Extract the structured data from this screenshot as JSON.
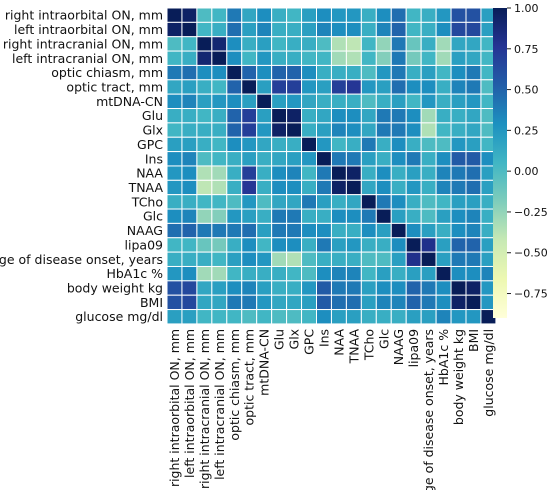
{
  "chart_data": {
    "type": "heatmap",
    "title": "",
    "xlabel": "",
    "ylabel": "",
    "labels": [
      "right intraorbital ON, mm",
      "left intraorbital ON, mm",
      "right intracranial ON, mm",
      "left intracranial ON, mm",
      "optic chiasm, mm",
      "optic tract, mm",
      "mtDNA-CN",
      "Glu",
      "Glx",
      "GPC",
      "Ins",
      "NAA",
      "TNAA",
      "TCho",
      "Glc",
      "NAAG",
      "lipa09",
      "Age of disease onset, years",
      "HbA1c %",
      "body weight kg",
      "BMI",
      "glucose mg/dl"
    ],
    "matrix": [
      [
        1.0,
        0.95,
        0.0,
        0.05,
        0.4,
        0.15,
        0.3,
        0.1,
        0.05,
        0.2,
        0.3,
        0.25,
        0.25,
        0.1,
        0.3,
        0.45,
        0.05,
        0.1,
        0.25,
        0.6,
        0.6,
        0.2
      ],
      [
        0.95,
        1.0,
        0.05,
        0.1,
        0.45,
        0.2,
        0.35,
        0.1,
        0.1,
        0.2,
        0.35,
        0.3,
        0.3,
        0.1,
        0.35,
        0.5,
        0.05,
        0.1,
        0.3,
        0.65,
        0.65,
        0.2
      ],
      [
        0.0,
        0.05,
        1.0,
        0.9,
        0.3,
        0.1,
        0.2,
        0.05,
        0.1,
        0.1,
        0.0,
        -0.35,
        -0.4,
        0.05,
        -0.25,
        0.4,
        -0.1,
        0.1,
        -0.3,
        0.15,
        0.15,
        0.05
      ],
      [
        0.05,
        0.1,
        0.9,
        1.0,
        0.3,
        0.05,
        0.25,
        0.1,
        0.1,
        0.05,
        0.05,
        -0.3,
        -0.35,
        0.05,
        -0.2,
        0.4,
        -0.15,
        0.05,
        -0.3,
        0.2,
        0.15,
        0.05
      ],
      [
        0.4,
        0.45,
        0.3,
        0.3,
        1.0,
        0.5,
        0.3,
        0.5,
        0.5,
        0.3,
        0.1,
        0.1,
        0.1,
        0.0,
        0.25,
        0.4,
        0.1,
        0.2,
        0.05,
        0.3,
        0.4,
        0.05
      ],
      [
        0.15,
        0.2,
        0.1,
        0.05,
        0.5,
        1.0,
        0.2,
        0.7,
        0.7,
        0.25,
        0.2,
        0.7,
        0.75,
        0.25,
        0.2,
        0.45,
        0.3,
        0.3,
        0.1,
        0.35,
        0.4,
        0.0
      ],
      [
        0.3,
        0.35,
        0.2,
        0.25,
        0.3,
        0.2,
        1.0,
        0.2,
        0.25,
        0.15,
        0.1,
        0.1,
        0.1,
        0.0,
        0.1,
        0.2,
        0.05,
        0.25,
        0.1,
        0.2,
        0.25,
        0.05
      ],
      [
        0.1,
        0.1,
        0.05,
        0.1,
        0.5,
        0.7,
        0.2,
        1.0,
        0.95,
        0.1,
        0.15,
        0.3,
        0.3,
        0.15,
        0.4,
        0.4,
        0.3,
        -0.3,
        0.1,
        0.1,
        0.15,
        0.0
      ],
      [
        0.05,
        0.1,
        0.1,
        0.1,
        0.5,
        0.7,
        0.25,
        0.95,
        1.0,
        0.1,
        0.2,
        0.35,
        0.3,
        0.15,
        0.4,
        0.4,
        0.3,
        -0.35,
        0.05,
        0.1,
        0.15,
        0.0
      ],
      [
        0.2,
        0.2,
        0.1,
        0.05,
        0.3,
        0.25,
        0.15,
        0.1,
        0.1,
        1.0,
        0.25,
        0.05,
        0.1,
        0.4,
        0.1,
        0.3,
        0.1,
        0.0,
        0.0,
        0.25,
        0.2,
        0.05
      ],
      [
        0.3,
        0.35,
        0.0,
        0.05,
        0.1,
        0.2,
        0.1,
        0.15,
        0.2,
        0.25,
        1.0,
        0.4,
        0.4,
        0.2,
        0.1,
        0.3,
        0.4,
        0.1,
        0.3,
        0.55,
        0.55,
        0.3
      ],
      [
        0.25,
        0.3,
        -0.35,
        -0.3,
        0.1,
        0.7,
        0.1,
        0.3,
        0.35,
        0.05,
        0.4,
        1.0,
        0.95,
        0.1,
        0.3,
        0.1,
        0.2,
        0.1,
        0.35,
        0.4,
        0.45,
        0.2
      ],
      [
        0.25,
        0.3,
        -0.4,
        -0.35,
        0.1,
        0.75,
        0.1,
        0.3,
        0.3,
        0.1,
        0.4,
        0.95,
        1.0,
        0.15,
        0.3,
        0.1,
        0.25,
        0.1,
        0.35,
        0.4,
        0.45,
        0.2
      ],
      [
        0.1,
        0.1,
        0.05,
        0.05,
        0.0,
        0.25,
        0.0,
        0.15,
        0.15,
        0.4,
        0.2,
        0.1,
        0.15,
        1.0,
        0.4,
        0.3,
        0.1,
        0.0,
        0.05,
        0.2,
        0.2,
        0.1
      ],
      [
        0.3,
        0.35,
        -0.25,
        -0.2,
        0.25,
        0.2,
        0.1,
        0.4,
        0.4,
        0.1,
        0.1,
        0.3,
        0.3,
        0.4,
        1.0,
        0.2,
        0.1,
        0.0,
        0.2,
        0.3,
        0.35,
        0.1
      ],
      [
        0.45,
        0.5,
        0.4,
        0.4,
        0.4,
        0.45,
        0.2,
        0.4,
        0.4,
        0.3,
        0.3,
        0.1,
        0.1,
        0.3,
        0.2,
        1.0,
        0.3,
        0.2,
        0.1,
        0.3,
        0.35,
        0.1
      ],
      [
        0.05,
        0.05,
        -0.1,
        -0.15,
        0.1,
        0.3,
        0.05,
        0.3,
        0.3,
        0.1,
        0.4,
        0.2,
        0.25,
        0.1,
        0.1,
        0.3,
        1.0,
        0.8,
        0.2,
        0.5,
        0.5,
        0.2
      ],
      [
        0.1,
        0.1,
        0.1,
        0.05,
        0.2,
        0.3,
        0.25,
        -0.3,
        -0.35,
        0.0,
        0.1,
        0.1,
        0.1,
        0.0,
        0.0,
        0.2,
        0.8,
        1.0,
        0.2,
        0.4,
        0.4,
        0.2
      ],
      [
        0.25,
        0.3,
        -0.3,
        -0.3,
        0.05,
        0.1,
        0.1,
        0.1,
        0.05,
        0.0,
        0.3,
        0.35,
        0.35,
        0.05,
        0.2,
        0.1,
        0.2,
        0.2,
        1.0,
        0.3,
        0.3,
        0.35
      ],
      [
        0.6,
        0.65,
        0.15,
        0.2,
        0.3,
        0.35,
        0.2,
        0.1,
        0.1,
        0.25,
        0.55,
        0.4,
        0.4,
        0.2,
        0.3,
        0.3,
        0.5,
        0.4,
        0.3,
        1.0,
        0.95,
        0.25
      ],
      [
        0.6,
        0.65,
        0.15,
        0.15,
        0.4,
        0.4,
        0.25,
        0.15,
        0.15,
        0.2,
        0.55,
        0.45,
        0.45,
        0.2,
        0.35,
        0.35,
        0.5,
        0.4,
        0.3,
        0.95,
        1.0,
        0.25
      ],
      [
        0.2,
        0.2,
        0.05,
        0.05,
        0.05,
        0.0,
        0.05,
        0.0,
        0.0,
        0.05,
        0.3,
        0.2,
        0.2,
        0.1,
        0.1,
        0.1,
        0.2,
        0.2,
        0.35,
        0.25,
        0.25,
        1.0
      ]
    ],
    "vmin": -0.9,
    "vmax": 1.0,
    "colorscale": "YlGnBu",
    "colorbar_ticks": [
      1.0,
      0.75,
      0.5,
      0.25,
      0.0,
      -0.25,
      -0.5,
      -0.75
    ],
    "colorbar_tick_labels": [
      "1.00",
      "0.75",
      "0.50",
      "0.25",
      "0.00",
      "−0.25",
      "−0.50",
      "−0.75"
    ],
    "grid": true,
    "legend": "right"
  }
}
